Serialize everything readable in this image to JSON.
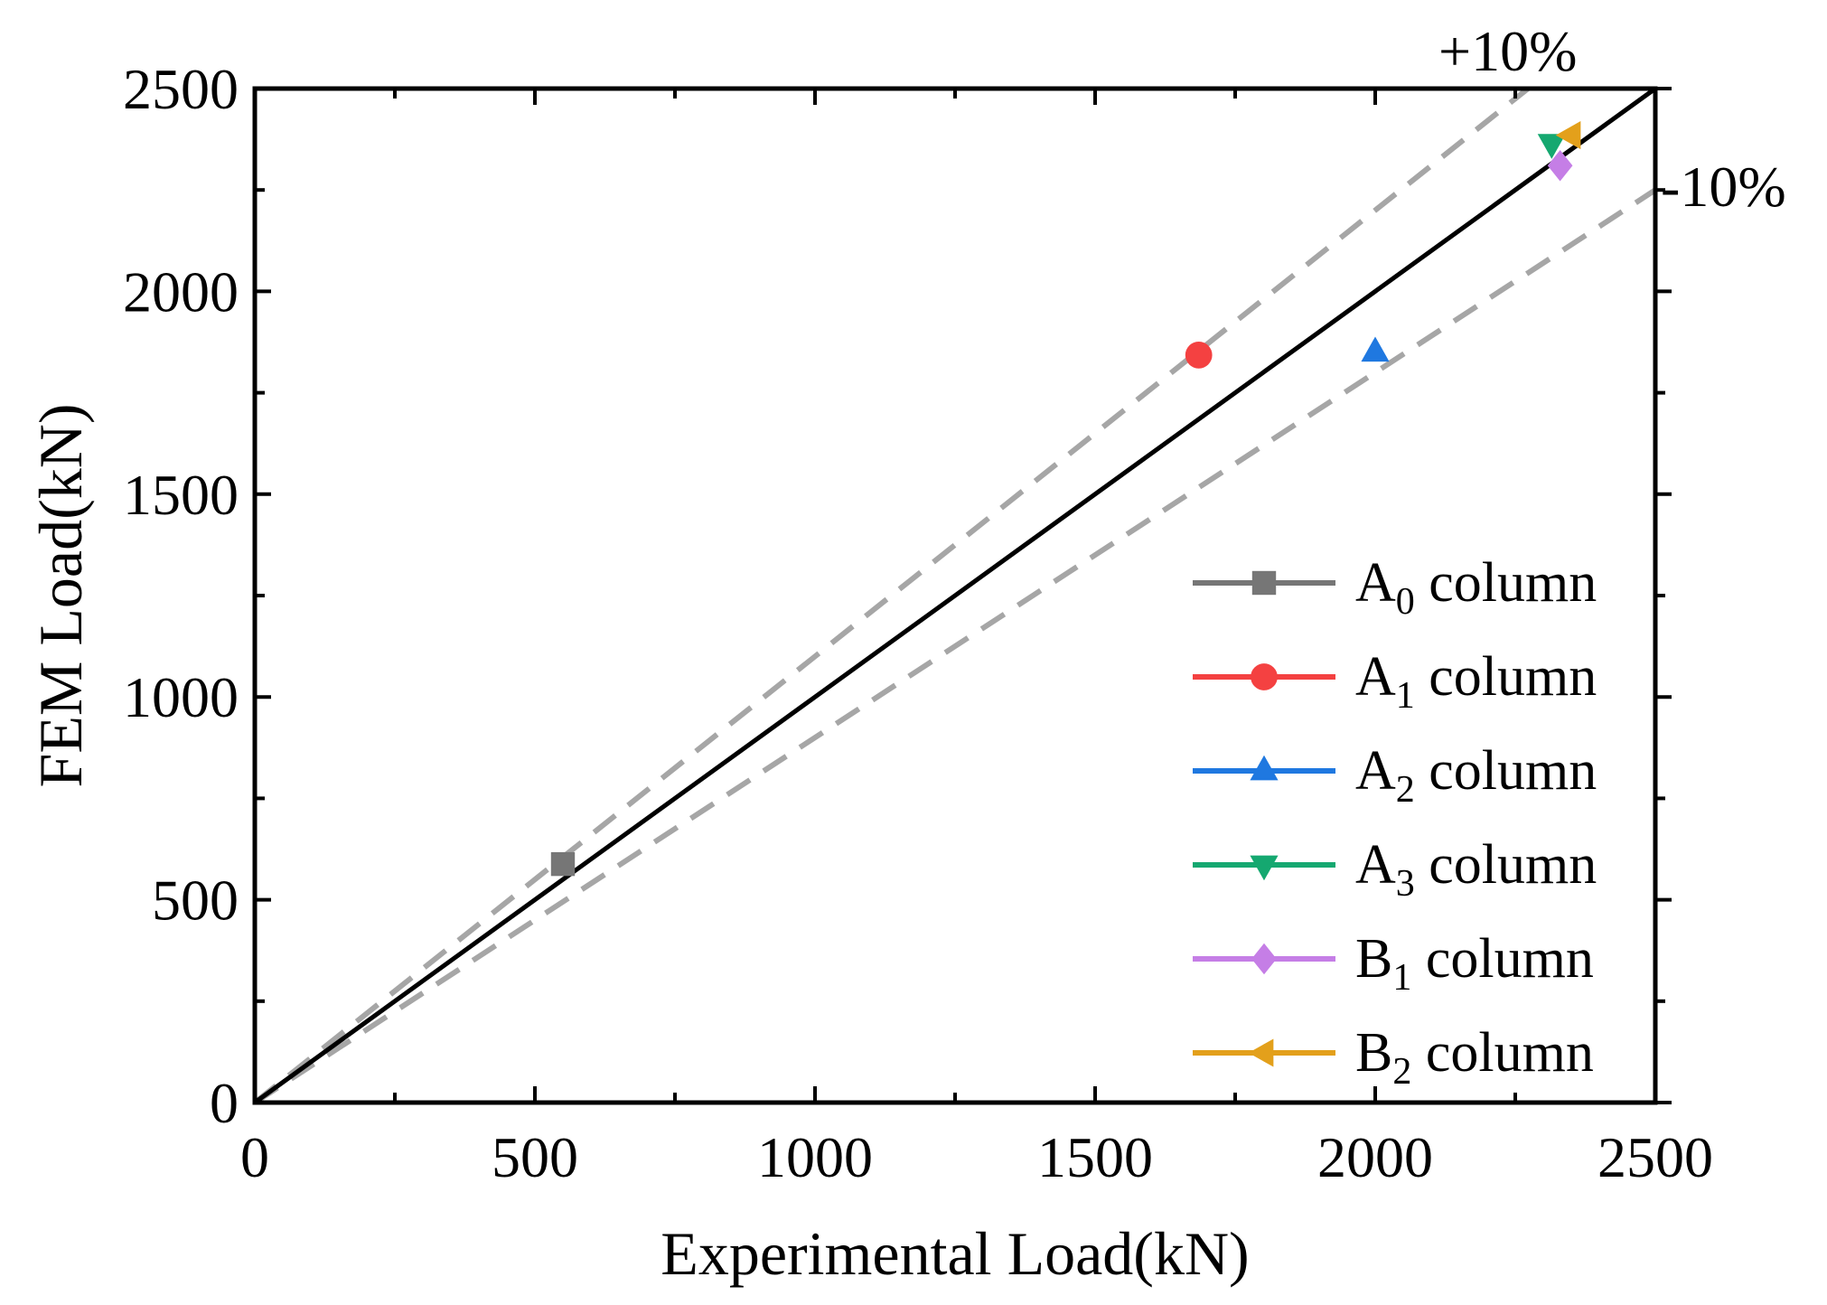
{
  "chart_data": {
    "type": "scatter",
    "title": "",
    "xlabel": "Experimental Load(kN)",
    "ylabel": "FEM Load(kN)",
    "xlim": [
      0,
      2500
    ],
    "ylim": [
      0,
      2500
    ],
    "xticks": [
      0,
      500,
      1000,
      1500,
      2000,
      2500
    ],
    "yticks": [
      0,
      500,
      1000,
      1500,
      2000,
      2500
    ],
    "grid": false,
    "legend_position": "bottom-right",
    "reference_lines": [
      {
        "name": "y=x",
        "slope": 1.0,
        "style": "solid",
        "color": "#000000"
      },
      {
        "name": "+10%",
        "slope": 1.1,
        "style": "dashed",
        "color": "#a6a6a6",
        "label": "+10%"
      },
      {
        "name": "-10%",
        "slope": 0.9,
        "style": "dashed",
        "color": "#a6a6a6",
        "label": "-10%"
      }
    ],
    "series": [
      {
        "name": "A",
        "sub": "0",
        "suffix": " column",
        "marker": "square",
        "color": "#767676",
        "x": 550,
        "y": 588
      },
      {
        "name": "A",
        "sub": "1",
        "suffix": " column",
        "marker": "circle",
        "color": "#f44141",
        "x": 1685,
        "y": 1843
      },
      {
        "name": "A",
        "sub": "2",
        "suffix": " column",
        "marker": "triangle-up",
        "color": "#1f78e0",
        "x": 2000,
        "y": 1850
      },
      {
        "name": "A",
        "sub": "3",
        "suffix": " column",
        "marker": "triangle-down",
        "color": "#15a870",
        "x": 2315,
        "y": 2365
      },
      {
        "name": "B",
        "sub": "1",
        "suffix": " column",
        "marker": "diamond",
        "color": "#c57ee6",
        "x": 2330,
        "y": 2310
      },
      {
        "name": "B",
        "sub": "2",
        "suffix": " column",
        "marker": "triangle-left",
        "color": "#e3a01b",
        "x": 2350,
        "y": 2385
      }
    ]
  }
}
